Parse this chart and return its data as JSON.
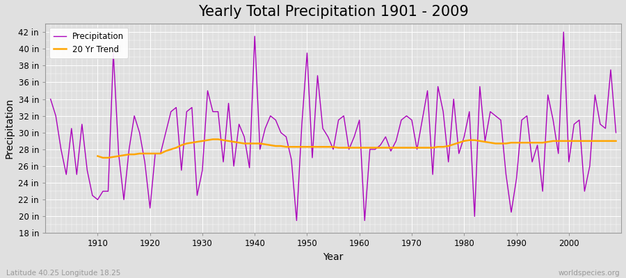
{
  "title": "Yearly Total Precipitation 1901 - 2009",
  "xlabel": "Year",
  "ylabel": "Precipitation",
  "subtitle_left": "Latitude 40.25 Longitude 18.25",
  "subtitle_right": "worldspecies.org",
  "years": [
    1901,
    1902,
    1903,
    1904,
    1905,
    1906,
    1907,
    1908,
    1909,
    1910,
    1911,
    1912,
    1913,
    1914,
    1915,
    1916,
    1917,
    1918,
    1919,
    1920,
    1921,
    1922,
    1923,
    1924,
    1925,
    1926,
    1927,
    1928,
    1929,
    1930,
    1931,
    1932,
    1933,
    1934,
    1935,
    1936,
    1937,
    1938,
    1939,
    1940,
    1941,
    1942,
    1943,
    1944,
    1945,
    1946,
    1947,
    1948,
    1949,
    1950,
    1951,
    1952,
    1953,
    1954,
    1955,
    1956,
    1957,
    1958,
    1959,
    1960,
    1961,
    1962,
    1963,
    1964,
    1965,
    1966,
    1967,
    1968,
    1969,
    1970,
    1971,
    1972,
    1973,
    1974,
    1975,
    1976,
    1977,
    1978,
    1979,
    1980,
    1981,
    1982,
    1983,
    1984,
    1985,
    1986,
    1987,
    1988,
    1989,
    1990,
    1991,
    1992,
    1993,
    1994,
    1995,
    1996,
    1997,
    1998,
    1999,
    2000,
    2001,
    2002,
    2003,
    2004,
    2005,
    2006,
    2007,
    2008,
    2009
  ],
  "precip": [
    34.0,
    32.0,
    28.0,
    25.0,
    30.5,
    25.0,
    31.0,
    25.5,
    22.5,
    22.0,
    23.0,
    23.0,
    39.5,
    27.5,
    22.0,
    28.0,
    32.0,
    30.0,
    26.5,
    21.0,
    27.5,
    27.5,
    30.0,
    32.5,
    33.0,
    25.5,
    32.5,
    33.0,
    22.5,
    25.5,
    35.0,
    32.5,
    32.5,
    26.5,
    33.5,
    26.0,
    31.0,
    29.5,
    25.8,
    41.5,
    28.0,
    30.5,
    32.0,
    31.5,
    30.0,
    29.5,
    26.8,
    19.5,
    31.0,
    39.5,
    27.0,
    36.8,
    30.5,
    29.5,
    28.0,
    31.5,
    32.0,
    28.0,
    29.5,
    31.5,
    19.5,
    28.0,
    28.0,
    28.5,
    29.5,
    27.8,
    29.0,
    31.5,
    32.0,
    31.5,
    28.0,
    31.5,
    35.0,
    25.0,
    35.5,
    32.5,
    26.5,
    34.0,
    27.5,
    29.5,
    32.5,
    20.0,
    35.5,
    29.0,
    32.5,
    32.0,
    31.5,
    25.0,
    20.5,
    24.5,
    31.5,
    32.0,
    26.5,
    28.5,
    23.0,
    34.5,
    31.5,
    27.5,
    42.0,
    26.5,
    31.0,
    31.5,
    23.0,
    26.0,
    34.5,
    31.0,
    30.5,
    37.5,
    30.0
  ],
  "trend_years": [
    1910,
    1911,
    1912,
    1913,
    1914,
    1915,
    1916,
    1917,
    1918,
    1919,
    1920,
    1921,
    1922,
    1923,
    1924,
    1925,
    1926,
    1927,
    1928,
    1929,
    1930,
    1931,
    1932,
    1933,
    1934,
    1935,
    1936,
    1937,
    1938,
    1939,
    1940,
    1941,
    1942,
    1943,
    1944,
    1945,
    1946,
    1947,
    1948,
    1949,
    1950,
    1951,
    1952,
    1953,
    1954,
    1955,
    1956,
    1957,
    1958,
    1959,
    1960,
    1961,
    1962,
    1963,
    1964,
    1965,
    1966,
    1967,
    1968,
    1969,
    1970,
    1971,
    1972,
    1973,
    1974,
    1975,
    1976,
    1977,
    1978,
    1979,
    1980,
    1981,
    1982,
    1983,
    1984,
    1985,
    1986,
    1987,
    1988,
    1989,
    1990,
    1991,
    1992,
    1993,
    1994,
    1995,
    1996,
    1997,
    1998,
    1999,
    2000,
    2001,
    2002,
    2003,
    2004,
    2005,
    2006,
    2007,
    2008,
    2009
  ],
  "trend": [
    27.2,
    27.0,
    27.0,
    27.1,
    27.2,
    27.3,
    27.4,
    27.4,
    27.5,
    27.5,
    27.5,
    27.5,
    27.5,
    27.8,
    28.0,
    28.2,
    28.5,
    28.7,
    28.8,
    28.9,
    29.0,
    29.1,
    29.2,
    29.2,
    29.1,
    29.0,
    28.9,
    28.8,
    28.7,
    28.7,
    28.7,
    28.7,
    28.6,
    28.5,
    28.4,
    28.4,
    28.3,
    28.3,
    28.3,
    28.3,
    28.3,
    28.3,
    28.3,
    28.3,
    28.3,
    28.3,
    28.2,
    28.2,
    28.2,
    28.2,
    28.2,
    28.2,
    28.2,
    28.2,
    28.2,
    28.2,
    28.2,
    28.2,
    28.2,
    28.2,
    28.2,
    28.2,
    28.2,
    28.2,
    28.2,
    28.3,
    28.3,
    28.4,
    28.6,
    28.8,
    29.0,
    29.1,
    29.1,
    29.0,
    28.9,
    28.8,
    28.7,
    28.7,
    28.7,
    28.8,
    28.8,
    28.8,
    28.8,
    28.8,
    28.8,
    28.8,
    28.9,
    29.0,
    29.0,
    29.0,
    29.0,
    29.0,
    29.0,
    29.0,
    29.0,
    29.0,
    29.0,
    29.0,
    29.0,
    29.0
  ],
  "precip_color": "#AA00BB",
  "trend_color": "#FFA500",
  "fig_bg_color": "#E0E0E0",
  "plot_bg_color": "#E0E0E0",
  "grid_color": "#FFFFFF",
  "ylim": [
    18,
    43
  ],
  "yticks": [
    18,
    20,
    22,
    24,
    26,
    28,
    30,
    32,
    34,
    36,
    38,
    40,
    42
  ],
  "xtick_years": [
    1910,
    1920,
    1930,
    1940,
    1950,
    1960,
    1970,
    1980,
    1990,
    2000
  ],
  "legend_labels": [
    "Precipitation",
    "20 Yr Trend"
  ],
  "title_fontsize": 15,
  "axis_label_fontsize": 10,
  "tick_fontsize": 8.5,
  "footer_fontsize": 7.5,
  "precip_linewidth": 1.0,
  "trend_linewidth": 1.8
}
